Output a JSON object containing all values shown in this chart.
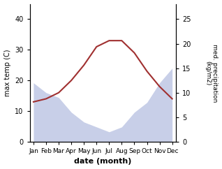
{
  "months": [
    "Jan",
    "Feb",
    "Mar",
    "Apr",
    "May",
    "Jun",
    "Jul",
    "Aug",
    "Sep",
    "Oct",
    "Nov",
    "Dec"
  ],
  "temp": [
    13,
    14,
    16,
    20,
    25,
    31,
    33,
    33,
    29,
    23,
    18,
    14
  ],
  "precip": [
    12,
    10,
    9,
    6,
    4,
    3,
    2,
    3,
    6,
    8,
    12,
    15
  ],
  "temp_color": "#a03030",
  "precip_fill_color": "#c8cfe8",
  "temp_ylim": [
    0,
    45
  ],
  "precip_ylim": [
    0,
    28.125
  ],
  "temp_yticks": [
    0,
    10,
    20,
    30,
    40
  ],
  "precip_yticks": [
    0,
    5,
    10,
    15,
    20,
    25
  ],
  "xlabel": "date (month)",
  "ylabel_left": "max temp (C)",
  "ylabel_right": "med. precipitation\n(kg/m2)",
  "title": ""
}
